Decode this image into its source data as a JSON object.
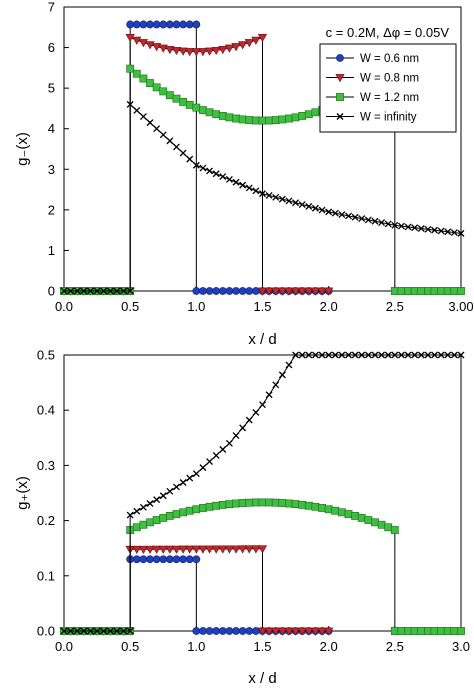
{
  "chart_data": [
    {
      "type": "line",
      "panel": "top",
      "ylabel": "g₋(x)",
      "xlabel": "x / d",
      "xlim": [
        0,
        3.0
      ],
      "ylim": [
        0,
        7
      ],
      "xticks": [
        "0.0",
        "0.5",
        "1.0",
        "1.5",
        "2.0",
        "2.5",
        "3.00"
      ],
      "yticks": [
        "0",
        "1",
        "2",
        "3",
        "4",
        "5",
        "6",
        "7"
      ],
      "annotation": "c = 0.2M, Δφ = 0.05V",
      "legend": {
        "placement": "top-right",
        "entries": [
          "W = 0.6 nm",
          "W = 0.8 nm",
          "W = 1.2 nm",
          "W = infinity"
        ]
      },
      "series": [
        {
          "name": "W = 0.6 nm",
          "color": "#1f3fbf",
          "marker": "circle",
          "wall_left": 0.5,
          "wall_right": 1.0,
          "zero_end": 2.0,
          "x": [
            0.5,
            1.0
          ],
          "y": [
            6.57,
            6.57
          ],
          "curve_type": "flat"
        },
        {
          "name": "W = 0.8 nm",
          "color": "#c0282e",
          "marker": "triangle-down",
          "wall_left": 0.5,
          "wall_right": 1.5,
          "zero_end": 2.0,
          "x": [
            0.5,
            1.0,
            1.5
          ],
          "y": [
            6.25,
            5.9,
            6.25
          ],
          "curve_type": "parabola"
        },
        {
          "name": "W = 1.2 nm",
          "color": "#3fbf3f",
          "marker": "square",
          "wall_left": 0.5,
          "wall_right": 2.5,
          "zero_end": 3.0,
          "x": [
            0.5,
            1.5,
            2.5
          ],
          "y": [
            5.48,
            4.2,
            5.48
          ],
          "curve_type": "parabola"
        },
        {
          "name": "W = infinity",
          "color": "#000000",
          "marker": "x",
          "wall_left": 0.5,
          "wall_right": null,
          "zero_end": null,
          "x": [
            0.5,
            1.0,
            1.5,
            2.0,
            2.5,
            3.0
          ],
          "y": [
            4.6,
            3.1,
            2.4,
            1.95,
            1.62,
            1.42
          ],
          "curve_type": "decay"
        }
      ]
    },
    {
      "type": "line",
      "panel": "bottom",
      "ylabel": "g₊(x)",
      "xlabel": "x / d",
      "xlim": [
        0,
        3.0
      ],
      "ylim": [
        0,
        0.5
      ],
      "xticks": [
        "0.0",
        "0.5",
        "1.0",
        "1.5",
        "2.0",
        "2.5",
        "3.0"
      ],
      "yticks": [
        "0.0",
        "0.1",
        "0.2",
        "0.3",
        "0.4",
        "0.5"
      ],
      "series": [
        {
          "name": "W = 0.6 nm",
          "color": "#1f3fbf",
          "marker": "circle",
          "wall_left": 0.5,
          "wall_right": 1.0,
          "zero_end": 2.0,
          "x": [
            0.5,
            1.0
          ],
          "y": [
            0.13,
            0.13
          ],
          "curve_type": "flat"
        },
        {
          "name": "W = 0.8 nm",
          "color": "#c0282e",
          "marker": "triangle-down",
          "wall_left": 0.5,
          "wall_right": 1.5,
          "zero_end": 2.0,
          "x": [
            0.5,
            1.5
          ],
          "y": [
            0.148,
            0.149
          ],
          "curve_type": "flat"
        },
        {
          "name": "W = 1.2 nm",
          "color": "#3fbf3f",
          "marker": "square",
          "wall_left": 0.5,
          "wall_right": 2.5,
          "zero_end": 3.0,
          "x": [
            0.5,
            1.5,
            2.5
          ],
          "y": [
            0.183,
            0.233,
            0.183
          ],
          "curve_type": "parabola"
        },
        {
          "name": "W = infinity",
          "color": "#000000",
          "marker": "x",
          "wall_left": 0.5,
          "wall_right": null,
          "zero_end": null,
          "x": [
            0.5,
            0.75,
            1.0,
            1.25,
            1.5,
            1.75
          ],
          "y": [
            0.21,
            0.245,
            0.285,
            0.34,
            0.41,
            0.5
          ],
          "curve_type": "growth"
        }
      ]
    }
  ]
}
